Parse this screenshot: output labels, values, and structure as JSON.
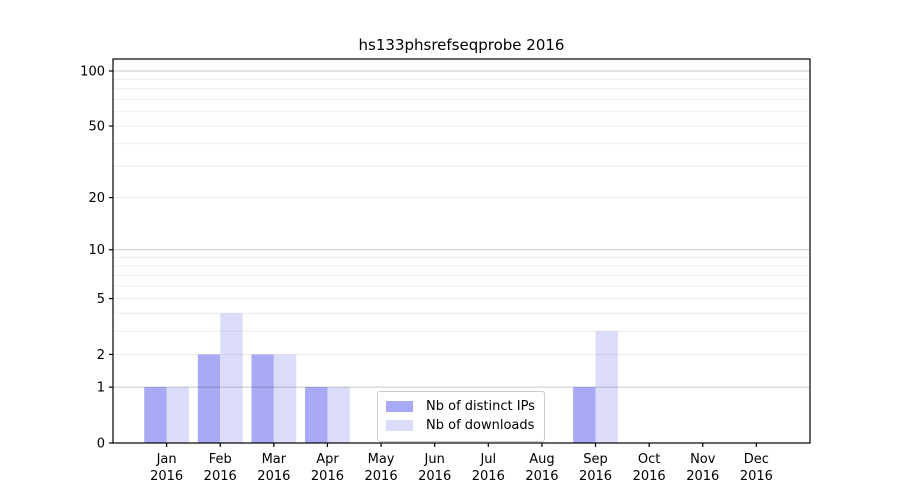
{
  "page": {
    "background": "#ffffff"
  },
  "chart_data": {
    "type": "bar",
    "title": "hs133phsrefseqprobe 2016",
    "categories": [
      "Jan",
      "Feb",
      "Mar",
      "Apr",
      "May",
      "Jun",
      "Jul",
      "Aug",
      "Sep",
      "Oct",
      "Nov",
      "Dec"
    ],
    "category_year": "2016",
    "series": [
      {
        "name": "Nb of distinct IPs",
        "color": "#a9aaf5",
        "values": [
          1,
          2,
          2,
          1,
          0,
          0,
          0,
          0,
          1,
          0,
          0,
          0
        ]
      },
      {
        "name": "Nb of downloads",
        "color": "#dcddfa",
        "values": [
          1,
          4,
          2,
          1,
          0,
          0,
          0,
          0,
          3,
          0,
          0,
          0
        ]
      }
    ],
    "xlabel": "",
    "ylabel": "",
    "y_axis": {
      "scale": "log10(value+1)",
      "ticks": [
        0,
        1,
        2,
        5,
        10,
        20,
        50,
        100
      ],
      "major_gridlines": [
        1,
        10,
        100
      ],
      "minor_gridlines": [
        2,
        3,
        4,
        5,
        6,
        7,
        8,
        9,
        20,
        30,
        40,
        50,
        60,
        70,
        80,
        90
      ],
      "ylim": [
        0,
        116
      ]
    },
    "grid": "on",
    "legend_position": "bottom-center",
    "axis_color": "#000000",
    "major_grid_color": "#c8c8c8",
    "minor_grid_color": "#ededed"
  }
}
